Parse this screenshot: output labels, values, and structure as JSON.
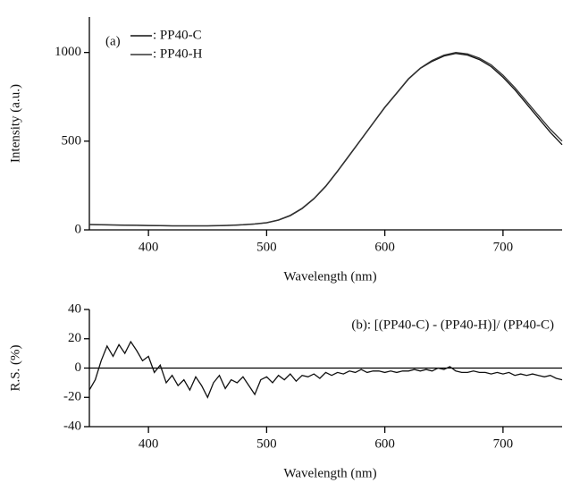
{
  "chart_data": [
    {
      "type": "line",
      "annotation": "(a)",
      "x_label": "Wavelength (nm)",
      "y_label": "Intensity (a.u.)",
      "xlim": [
        350,
        750
      ],
      "ylim": [
        0,
        1200
      ],
      "xticks": [
        400,
        500,
        600,
        700
      ],
      "yticks": [
        0,
        500,
        1000
      ],
      "legend": "top-left",
      "x": [
        350,
        360,
        370,
        380,
        390,
        400,
        410,
        420,
        430,
        440,
        450,
        460,
        470,
        480,
        490,
        500,
        510,
        520,
        530,
        540,
        550,
        560,
        570,
        580,
        590,
        600,
        610,
        620,
        630,
        640,
        650,
        660,
        670,
        680,
        690,
        700,
        710,
        720,
        730,
        740,
        750
      ],
      "series": [
        {
          "name": ": PP40-C",
          "color": "#111111",
          "values": [
            30,
            28,
            27,
            26,
            25,
            24,
            23,
            22,
            22,
            22,
            22,
            23,
            25,
            28,
            33,
            40,
            55,
            80,
            120,
            175,
            245,
            330,
            420,
            510,
            600,
            690,
            770,
            850,
            910,
            950,
            980,
            995,
            985,
            960,
            920,
            860,
            790,
            710,
            630,
            550,
            480
          ]
        },
        {
          "name": ": PP40-H",
          "color": "#333333",
          "values": [
            31,
            29,
            28,
            27,
            26,
            25,
            24,
            23,
            23,
            23,
            23,
            24,
            26,
            29,
            34,
            41,
            56,
            82,
            122,
            177,
            247,
            332,
            422,
            512,
            602,
            692,
            772,
            852,
            912,
            955,
            985,
            1000,
            992,
            968,
            930,
            872,
            802,
            724,
            645,
            567,
            500
          ]
        }
      ]
    },
    {
      "type": "line",
      "annotation": "(b): [(PP40-C) - (PP40-H)]/ (PP40-C)",
      "x_label": "Wavelength (nm)",
      "y_label": "R.S. (%)",
      "xlim": [
        350,
        750
      ],
      "ylim": [
        -40,
        40
      ],
      "xticks": [
        400,
        500,
        600,
        700
      ],
      "yticks": [
        -40,
        -20,
        0,
        20,
        40
      ],
      "color": "#111111",
      "x": [
        350,
        355,
        360,
        365,
        370,
        375,
        380,
        385,
        390,
        395,
        400,
        405,
        410,
        415,
        420,
        425,
        430,
        435,
        440,
        445,
        450,
        455,
        460,
        465,
        470,
        475,
        480,
        485,
        490,
        495,
        500,
        505,
        510,
        515,
        520,
        525,
        530,
        535,
        540,
        545,
        550,
        555,
        560,
        565,
        570,
        575,
        580,
        585,
        590,
        595,
        600,
        605,
        610,
        615,
        620,
        625,
        630,
        635,
        640,
        645,
        650,
        655,
        660,
        665,
        670,
        675,
        680,
        685,
        690,
        695,
        700,
        705,
        710,
        715,
        720,
        725,
        730,
        735,
        740,
        745,
        750
      ],
      "values": [
        -15,
        -8,
        5,
        15,
        8,
        16,
        10,
        18,
        12,
        5,
        8,
        -3,
        2,
        -10,
        -5,
        -12,
        -8,
        -15,
        -6,
        -12,
        -20,
        -10,
        -5,
        -14,
        -8,
        -10,
        -6,
        -12,
        -18,
        -8,
        -6,
        -10,
        -5,
        -8,
        -4,
        -9,
        -5,
        -6,
        -4,
        -7,
        -3,
        -5,
        -3,
        -4,
        -2,
        -3,
        -1,
        -3,
        -2,
        -2,
        -3,
        -2,
        -3,
        -2,
        -2,
        -1,
        -2,
        -1,
        -2,
        0,
        -1,
        1,
        -2,
        -3,
        -3,
        -2,
        -3,
        -3,
        -4,
        -3,
        -4,
        -3,
        -5,
        -4,
        -5,
        -4,
        -5,
        -6,
        -5,
        -7,
        -8
      ]
    }
  ]
}
